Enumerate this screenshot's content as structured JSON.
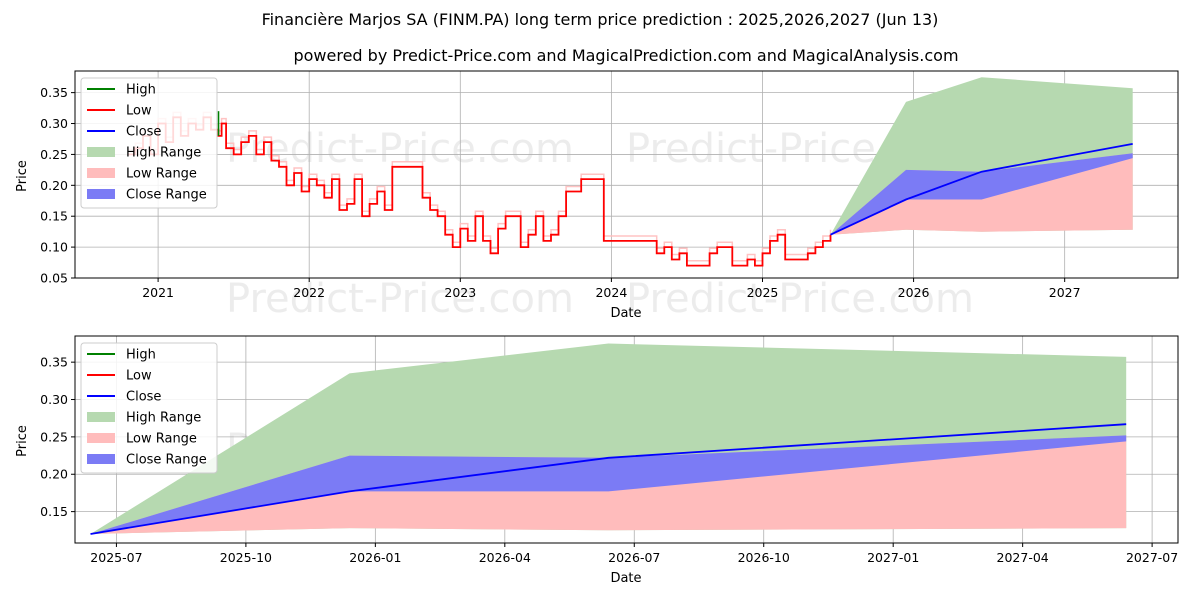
{
  "title": "Financière Marjos SA (FINM.PA) long term price prediction : 2025,2026,2027 (Jun 13)",
  "subtitle": "powered by Predict-Price.com and MagicalPrediction.com and MagicalAnalysis.com",
  "watermark": "Predict-Price.com",
  "colors": {
    "high": "#008000",
    "low": "#ff0000",
    "close": "#0000ff",
    "high_range": "#b6d9b0",
    "low_range": "#ffbcbc",
    "close_range": "#7b7bf5"
  },
  "legend": [
    "High",
    "Low",
    "Close",
    "High Range",
    "Low Range",
    "Close Range"
  ],
  "chart_data": [
    {
      "type": "line",
      "name": "top",
      "xlabel": "Date",
      "ylabel": "Price",
      "xlim": [
        2020.45,
        2027.75
      ],
      "ylim": [
        0.05,
        0.385
      ],
      "xticks": [
        2021,
        2022,
        2023,
        2024,
        2025,
        2026,
        2027
      ],
      "xtick_labels": [
        "2021",
        "2022",
        "2023",
        "2024",
        "2025",
        "2026",
        "2027"
      ],
      "yticks": [
        0.05,
        0.1,
        0.15,
        0.2,
        0.25,
        0.3,
        0.35
      ],
      "ytick_labels": [
        "0.05",
        "0.10",
        "0.15",
        "0.20",
        "0.25",
        "0.30",
        "0.35"
      ],
      "history": {
        "x": [
          2020.8,
          2020.85,
          2020.9,
          2020.95,
          2021.0,
          2021.05,
          2021.1,
          2021.15,
          2021.2,
          2021.25,
          2021.3,
          2021.35,
          2021.4,
          2021.42,
          2021.45,
          2021.5,
          2021.55,
          2021.6,
          2021.65,
          2021.7,
          2021.75,
          2021.8,
          2021.85,
          2021.9,
          2021.95,
          2022.0,
          2022.05,
          2022.1,
          2022.15,
          2022.2,
          2022.25,
          2022.3,
          2022.35,
          2022.4,
          2022.45,
          2022.5,
          2022.55,
          2022.6,
          2022.65,
          2022.7,
          2022.75,
          2022.8,
          2022.85,
          2022.9,
          2022.95,
          2023.0,
          2023.05,
          2023.1,
          2023.15,
          2023.2,
          2023.25,
          2023.3,
          2023.35,
          2023.4,
          2023.45,
          2023.5,
          2023.55,
          2023.6,
          2023.65,
          2023.7,
          2023.8,
          2023.85,
          2023.95,
          2024.1,
          2024.2,
          2024.25,
          2024.3,
          2024.35,
          2024.4,
          2024.45,
          2024.5,
          2024.55,
          2024.6,
          2024.65,
          2024.7,
          2024.75,
          2024.8,
          2024.85,
          2024.9,
          2024.95,
          2025.0,
          2025.05,
          2025.1,
          2025.15,
          2025.2,
          2025.25,
          2025.3,
          2025.35,
          2025.4,
          2025.45
        ],
        "low": [
          0.25,
          0.26,
          0.28,
          0.25,
          0.3,
          0.27,
          0.31,
          0.28,
          0.3,
          0.29,
          0.31,
          0.29,
          0.28,
          0.3,
          0.26,
          0.25,
          0.27,
          0.28,
          0.25,
          0.27,
          0.24,
          0.23,
          0.2,
          0.22,
          0.19,
          0.21,
          0.2,
          0.18,
          0.21,
          0.16,
          0.17,
          0.21,
          0.15,
          0.17,
          0.19,
          0.16,
          0.23,
          0.23,
          0.23,
          0.23,
          0.18,
          0.16,
          0.15,
          0.12,
          0.1,
          0.13,
          0.11,
          0.15,
          0.11,
          0.09,
          0.13,
          0.15,
          0.15,
          0.1,
          0.12,
          0.15,
          0.11,
          0.12,
          0.15,
          0.19,
          0.21,
          0.21,
          0.11,
          0.11,
          0.11,
          0.11,
          0.09,
          0.1,
          0.08,
          0.09,
          0.07,
          0.07,
          0.07,
          0.09,
          0.1,
          0.1,
          0.07,
          0.07,
          0.08,
          0.07,
          0.09,
          0.11,
          0.12,
          0.08,
          0.08,
          0.08,
          0.09,
          0.1,
          0.11,
          0.12
        ]
      },
      "forecast": {
        "x": [
          2025.45,
          2025.95,
          2026.45,
          2027.45
        ],
        "high": [
          0.12,
          0.335,
          0.375,
          0.357
        ],
        "low": [
          0.12,
          0.128,
          0.125,
          0.128
        ],
        "close_upper": [
          0.12,
          0.225,
          0.222,
          0.252
        ],
        "close_lower": [
          0.12,
          0.177,
          0.177,
          0.244
        ],
        "close": [
          0.12,
          0.177,
          0.222,
          0.267
        ]
      }
    },
    {
      "type": "area",
      "name": "bottom",
      "xlabel": "Date",
      "ylabel": "Price",
      "xlim": [
        2025.42,
        2027.55
      ],
      "ylim": [
        0.108,
        0.385
      ],
      "xticks": [
        2025.5,
        2025.75,
        2026.0,
        2026.25,
        2026.5,
        2026.75,
        2027.0,
        2027.25,
        2027.5
      ],
      "xtick_labels": [
        "2025-07",
        "2025-10",
        "2026-01",
        "2026-04",
        "2026-07",
        "2026-10",
        "2027-01",
        "2027-04",
        "2027-07"
      ],
      "yticks": [
        0.15,
        0.2,
        0.25,
        0.3,
        0.35
      ],
      "ytick_labels": [
        "0.15",
        "0.20",
        "0.25",
        "0.30",
        "0.35"
      ],
      "forecast": {
        "x": [
          2025.45,
          2025.95,
          2026.45,
          2027.45
        ],
        "high": [
          0.12,
          0.335,
          0.375,
          0.357
        ],
        "low": [
          0.12,
          0.128,
          0.125,
          0.128
        ],
        "close_upper": [
          0.12,
          0.225,
          0.222,
          0.252
        ],
        "close_lower": [
          0.12,
          0.177,
          0.177,
          0.244
        ],
        "close": [
          0.12,
          0.177,
          0.222,
          0.267
        ]
      }
    }
  ]
}
